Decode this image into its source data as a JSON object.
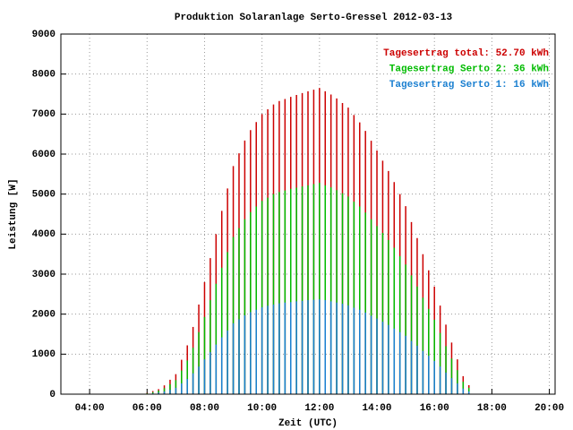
{
  "chart_data": {
    "type": "impulse",
    "title": "Produktion Solaranlage Serto-Gressel 2012-03-13",
    "xlabel": "Zeit (UTC)",
    "ylabel": "Leistung [W]",
    "x": [
      6.0,
      6.2,
      6.4,
      6.6,
      6.8,
      7.0,
      7.2,
      7.4,
      7.6,
      7.8,
      8.0,
      8.2,
      8.4,
      8.6,
      8.8,
      9.0,
      9.2,
      9.4,
      9.6,
      9.8,
      10.0,
      10.2,
      10.4,
      10.6,
      10.8,
      11.0,
      11.2,
      11.4,
      11.6,
      11.8,
      12.0,
      12.2,
      12.4,
      12.6,
      12.8,
      13.0,
      13.2,
      13.4,
      13.6,
      13.8,
      14.0,
      14.2,
      14.4,
      14.6,
      14.8,
      15.0,
      15.2,
      15.4,
      15.6,
      15.8,
      16.0,
      16.2,
      16.4,
      16.6,
      16.8,
      17.0,
      17.2,
      17.4
    ],
    "series": [
      {
        "name": "Tagesertrag total: 52.70 kWh",
        "color": "#cc0000",
        "values": [
          30,
          78,
          126,
          220,
          360,
          500,
          860,
          1220,
          1680,
          2240,
          2800,
          3400,
          4000,
          4580,
          5140,
          5700,
          6020,
          6340,
          6600,
          6800,
          7000,
          7120,
          7240,
          7326,
          7378,
          7430,
          7478,
          7526,
          7570,
          7610,
          7650,
          7570,
          7490,
          7392,
          7276,
          7160,
          6976,
          6792,
          6578,
          6334,
          6090,
          5834,
          5578,
          5300,
          5000,
          4700,
          4300,
          3900,
          3498,
          3094,
          2690,
          2214,
          1738,
          1290,
          870,
          450,
          225,
          0
        ]
      },
      {
        "name": "Tagesertrag Serto 2: 36 kWh",
        "color": "#00bb00",
        "values": [
          20,
          50,
          90,
          150,
          250,
          350,
          590,
          840,
          1160,
          1550,
          1930,
          2350,
          2760,
          3160,
          3550,
          3930,
          4150,
          4370,
          4550,
          4690,
          4830,
          4910,
          5000,
          5050,
          5090,
          5130,
          5160,
          5190,
          5220,
          5250,
          5280,
          5220,
          5170,
          5100,
          5020,
          4940,
          4810,
          4690,
          4540,
          4370,
          4200,
          4030,
          3850,
          3660,
          3450,
          3240,
          2970,
          2690,
          2410,
          2130,
          1860,
          1530,
          1200,
          890,
          600,
          310,
          160,
          0
        ]
      },
      {
        "name": "Tagesertrag Serto 1: 16 kWh",
        "color": "#1a7fd0",
        "values": [
          10,
          20,
          40,
          70,
          110,
          160,
          270,
          380,
          520,
          690,
          870,
          1050,
          1240,
          1420,
          1590,
          1770,
          1870,
          1970,
          2050,
          2110,
          2170,
          2210,
          2240,
          2270,
          2290,
          2300,
          2320,
          2330,
          2350,
          2360,
          2370,
          2350,
          2320,
          2290,
          2260,
          2220,
          2160,
          2110,
          2040,
          1960,
          1890,
          1810,
          1730,
          1640,
          1550,
          1460,
          1330,
          1210,
          1080,
          960,
          830,
          690,
          540,
          400,
          270,
          140,
          70,
          0
        ]
      }
    ],
    "xlim": [
      3,
      20.2
    ],
    "xticks": [
      {
        "value": 4,
        "label": "04:00"
      },
      {
        "value": 6,
        "label": "06:00"
      },
      {
        "value": 8,
        "label": "08:00"
      },
      {
        "value": 10,
        "label": "10:00"
      },
      {
        "value": 12,
        "label": "12:00"
      },
      {
        "value": 14,
        "label": "14:00"
      },
      {
        "value": 16,
        "label": "16:00"
      },
      {
        "value": 18,
        "label": "18:00"
      },
      {
        "value": 20,
        "label": "20:00"
      }
    ],
    "ylim": [
      0,
      9000
    ],
    "yticks": [
      0,
      1000,
      2000,
      3000,
      4000,
      5000,
      6000,
      7000,
      8000,
      9000
    ],
    "grid": true,
    "legend": "upper right"
  }
}
